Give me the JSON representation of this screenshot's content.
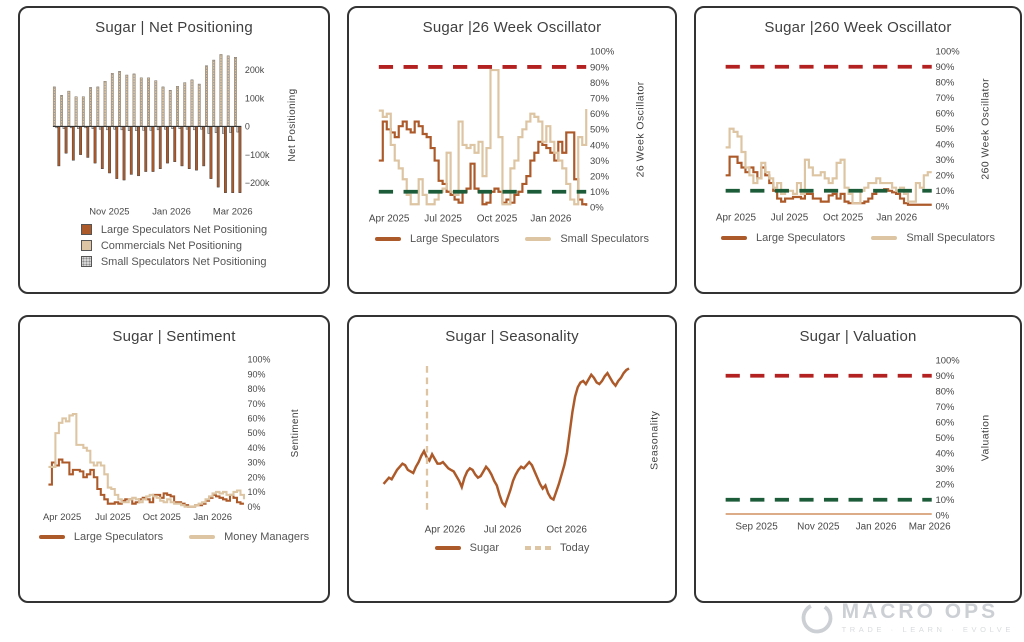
{
  "colors": {
    "brown": "#ad5a2a",
    "tan": "#ddc5a3",
    "tanbar": "#dcc4a2",
    "gray": "#cfcfcf",
    "red": "#b42121",
    "green": "#1d5c39",
    "valuation_line": "#c87941",
    "panel_border": "#333333",
    "title_text": "#3f3f3f",
    "tick_text": "#474747",
    "legend_text": "#555555"
  },
  "logo": {
    "brand": "MACRO OPS",
    "tagline": "TRADE · LEARN · EVOLVE"
  },
  "chart_data": [
    {
      "type": "bar",
      "title": "Sugar | Net Positioning",
      "ylabel": "Net Positioning",
      "units": "contracts (thousands)",
      "ylim": [
        -265,
        275
      ],
      "plot": {
        "l": 30,
        "r": 240,
        "t": 12,
        "b": 182
      },
      "ylabel_x": 300,
      "yticks": [
        [
          200,
          "200k"
        ],
        [
          100,
          "100k"
        ],
        [
          0,
          "0"
        ],
        [
          -100,
          "−100k"
        ],
        [
          -200,
          "−200k"
        ]
      ],
      "xticks": [
        [
          0.3,
          "Nov 2025"
        ],
        [
          0.63,
          "Jan 2026"
        ],
        [
          0.955,
          "Mar 2026"
        ]
      ],
      "series": [
        {
          "name": "Large Speculators Net Positioning",
          "role": "large",
          "color": "#ad5a2a",
          "values": [
            -140,
            -95,
            -120,
            -100,
            -110,
            -130,
            -150,
            -165,
            -185,
            -190,
            -170,
            -175,
            -160,
            -160,
            -150,
            -130,
            -125,
            -140,
            -150,
            -155,
            -140,
            -185,
            -215,
            -235,
            -235,
            -235
          ]
        },
        {
          "name": "Commercials Net Positioning",
          "role": "commercials",
          "color": "#dcc4a2",
          "values": [
            140,
            110,
            125,
            105,
            105,
            138,
            140,
            160,
            188,
            195,
            182,
            186,
            172,
            172,
            162,
            140,
            128,
            142,
            155,
            165,
            150,
            215,
            235,
            255,
            250,
            245
          ]
        },
        {
          "name": "Small Speculators Net Positioning",
          "role": "small",
          "color": "#cfcfcf",
          "values": [
            -5,
            -8,
            -5,
            -8,
            -5,
            -8,
            -10,
            -12,
            -10,
            -12,
            -15,
            -15,
            -14,
            -14,
            -12,
            -10,
            -8,
            -8,
            -10,
            -12,
            -10,
            -25,
            -22,
            -25,
            -22,
            -20
          ]
        }
      ],
      "legend": [
        {
          "label": "Large Speculators Net Positioning",
          "swatch": "sq-brown"
        },
        {
          "label": "Commercials Net Positioning",
          "swatch": "sq-tan"
        },
        {
          "label": "Small Speculators Net Positioning",
          "swatch": "sq-gray"
        }
      ]
    },
    {
      "type": "step",
      "title": "Sugar |26 Week Oscillator",
      "ylabel": "26 Week Oscillator",
      "ylim": [
        0,
        100
      ],
      "plot": {
        "l": 25,
        "r": 243,
        "t": 14,
        "b": 178
      },
      "ylabel_x": 303,
      "yticks": [
        [
          100,
          "100%"
        ],
        [
          90,
          "90%"
        ],
        [
          80,
          "80%"
        ],
        [
          70,
          "70%"
        ],
        [
          60,
          "60%"
        ],
        [
          50,
          "50%"
        ],
        [
          40,
          "40%"
        ],
        [
          30,
          "30%"
        ],
        [
          20,
          "20%"
        ],
        [
          10,
          "10%"
        ],
        [
          0,
          "0%"
        ]
      ],
      "xticks": [
        [
          0.05,
          "Apr 2025"
        ],
        [
          0.31,
          "Jul 2025"
        ],
        [
          0.57,
          "Oct 2025"
        ],
        [
          0.83,
          "Jan 2026"
        ]
      ],
      "guides": [
        [
          90,
          "red"
        ],
        [
          10,
          "green"
        ]
      ],
      "series": [
        {
          "name": "Large Speculators",
          "color": "#ad5a2a",
          "values": [
            30,
            55,
            50,
            48,
            45,
            52,
            55,
            50,
            48,
            55,
            52,
            47,
            45,
            38,
            30,
            17,
            15,
            10,
            8,
            5,
            3,
            10,
            12,
            28,
            12,
            10,
            2,
            3,
            10,
            12,
            10,
            3,
            5,
            3,
            8,
            10,
            15,
            20,
            30,
            35,
            42,
            40,
            38,
            35,
            30,
            42,
            35,
            48,
            48,
            18,
            5,
            2,
            1
          ]
        },
        {
          "name": "Small Speculators",
          "color": "#ddc5a3",
          "values": [
            62,
            58,
            60,
            40,
            30,
            25,
            18,
            8,
            2,
            2,
            18,
            8,
            2,
            2,
            5,
            10,
            12,
            35,
            10,
            8,
            55,
            40,
            38,
            40,
            35,
            42,
            20,
            38,
            88,
            88,
            45,
            2,
            2,
            25,
            30,
            45,
            50,
            55,
            60,
            58,
            55,
            42,
            52,
            42,
            35,
            30,
            25,
            15,
            5,
            2,
            45,
            40,
            63
          ]
        }
      ],
      "legend": [
        {
          "label": "Large Speculators",
          "swatch": "line-brown"
        },
        {
          "label": "Small Speculators",
          "swatch": "line-tan"
        }
      ]
    },
    {
      "type": "step",
      "title": "Sugar |260 Week Oscillator",
      "ylabel": "260 Week Oscillator",
      "ylim": [
        0,
        100
      ],
      "plot": {
        "l": 25,
        "r": 243,
        "t": 14,
        "b": 178
      },
      "ylabel_x": 303,
      "yticks": [
        [
          100,
          "100%"
        ],
        [
          90,
          "90%"
        ],
        [
          80,
          "80%"
        ],
        [
          70,
          "70%"
        ],
        [
          60,
          "60%"
        ],
        [
          50,
          "50%"
        ],
        [
          40,
          "40%"
        ],
        [
          30,
          "30%"
        ],
        [
          20,
          "20%"
        ],
        [
          10,
          "10%"
        ],
        [
          0,
          "0%"
        ]
      ],
      "xticks": [
        [
          0.05,
          "Apr 2025"
        ],
        [
          0.31,
          "Jul 2025"
        ],
        [
          0.57,
          "Oct 2025"
        ],
        [
          0.83,
          "Jan 2026"
        ]
      ],
      "guides": [
        [
          90,
          "red"
        ],
        [
          10,
          "green"
        ]
      ],
      "series": [
        {
          "name": "Large Speculators",
          "color": "#ad5a2a",
          "values": [
            20,
            32,
            32,
            28,
            25,
            22,
            25,
            22,
            18,
            25,
            20,
            15,
            10,
            5,
            3,
            5,
            5,
            6,
            6,
            5,
            8,
            8,
            5,
            5,
            3,
            3,
            7,
            8,
            5,
            8,
            3,
            2,
            2,
            2,
            2,
            3,
            5,
            8,
            10,
            10,
            11,
            10,
            9,
            8,
            5,
            2,
            1,
            1,
            1,
            1,
            1,
            1,
            1
          ]
        },
        {
          "name": "Small Speculators",
          "color": "#ddc5a3",
          "values": [
            38,
            50,
            48,
            45,
            35,
            25,
            20,
            15,
            18,
            28,
            22,
            18,
            12,
            15,
            8,
            10,
            10,
            8,
            15,
            8,
            30,
            25,
            20,
            20,
            22,
            18,
            15,
            18,
            28,
            30,
            12,
            8,
            2,
            2,
            10,
            12,
            15,
            15,
            18,
            15,
            15,
            15,
            12,
            10,
            12,
            8,
            3,
            3,
            15,
            12,
            20,
            22,
            22
          ]
        }
      ],
      "legend": [
        {
          "label": "Large Speculators",
          "swatch": "line-brown"
        },
        {
          "label": "Small Speculators",
          "swatch": "line-tan"
        }
      ]
    },
    {
      "type": "step",
      "title": "Sugar | Sentiment",
      "ylabel": "Sentiment",
      "ylim": [
        0,
        100
      ],
      "plot": {
        "l": 25,
        "r": 243,
        "t": 14,
        "b": 178
      },
      "ylabel_x": 303,
      "yticks": [
        [
          100,
          "100%"
        ],
        [
          90,
          "90%"
        ],
        [
          80,
          "80%"
        ],
        [
          70,
          "70%"
        ],
        [
          60,
          "60%"
        ],
        [
          50,
          "50%"
        ],
        [
          40,
          "40%"
        ],
        [
          30,
          "30%"
        ],
        [
          20,
          "20%"
        ],
        [
          10,
          "10%"
        ],
        [
          0,
          "0%"
        ]
      ],
      "xticks": [
        [
          0.07,
          "Apr 2025"
        ],
        [
          0.33,
          "Jul 2025"
        ],
        [
          0.58,
          "Oct 2025"
        ],
        [
          0.84,
          "Jan 2026"
        ]
      ],
      "series": [
        {
          "name": "Large Speculators",
          "color": "#ad5a2a",
          "values": [
            15,
            30,
            28,
            32,
            30,
            30,
            22,
            25,
            25,
            24,
            20,
            22,
            25,
            20,
            12,
            8,
            5,
            2,
            2,
            3,
            2,
            4,
            5,
            5,
            2,
            3,
            5,
            6,
            5,
            3,
            8,
            8,
            6,
            9,
            8,
            7,
            3,
            3,
            2,
            1,
            0,
            0,
            1,
            1,
            2,
            4,
            6,
            8,
            7,
            6,
            5,
            4,
            8,
            6,
            3,
            2,
            2
          ]
        },
        {
          "name": "Money Managers",
          "color": "#ddc5a3",
          "values": [
            27,
            27,
            50,
            57,
            60,
            58,
            62,
            63,
            42,
            42,
            40,
            38,
            30,
            28,
            30,
            28,
            22,
            13,
            12,
            8,
            5,
            3,
            3,
            5,
            6,
            5,
            3,
            5,
            7,
            8,
            7,
            6,
            4,
            3,
            5,
            3,
            2,
            2,
            1,
            0,
            0,
            0,
            1,
            2,
            3,
            5,
            7,
            9,
            10,
            9,
            10,
            8,
            8,
            10,
            11,
            8,
            5
          ]
        }
      ],
      "legend": [
        {
          "label": "Large Speculators",
          "swatch": "line-brown"
        },
        {
          "label": "Money Managers",
          "swatch": "line-tan"
        }
      ]
    },
    {
      "type": "line",
      "title": "Sugar | Seasonality",
      "ylabel": "Seasonality",
      "ylim": [
        0,
        100
      ],
      "plot": {
        "l": 30,
        "r": 288,
        "t": 16,
        "b": 180
      },
      "ylabel_x": 318,
      "yticks": [],
      "xticks": [
        [
          0.25,
          "Apr 2026"
        ],
        [
          0.485,
          "Jul 2026"
        ],
        [
          0.746,
          "Oct 2026"
        ]
      ],
      "today_x": 0.177,
      "series": [
        {
          "name": "Sugar",
          "color": "#ad5a2a",
          "width": 2.6,
          "values": [
            22,
            24,
            26,
            25,
            28,
            31,
            33,
            35,
            34,
            31,
            30,
            29,
            33,
            36,
            40,
            43,
            39,
            37,
            41,
            38,
            35,
            35,
            36,
            34,
            32,
            31,
            30,
            27,
            24,
            20,
            26,
            30,
            32,
            31,
            28,
            26,
            27,
            30,
            33,
            31,
            28,
            24,
            21,
            15,
            10,
            8,
            13,
            18,
            24,
            28,
            31,
            33,
            32,
            34,
            36,
            34,
            30,
            26,
            22,
            19,
            21,
            16,
            13,
            12,
            17,
            22,
            28,
            34,
            42,
            55,
            68,
            78,
            84,
            87,
            88,
            86,
            89,
            92,
            90,
            87,
            86,
            88,
            91,
            93,
            90,
            87,
            85,
            88,
            90,
            93,
            95,
            96
          ]
        }
      ],
      "legend": [
        {
          "label": "Sugar",
          "swatch": "line-brown"
        },
        {
          "label": "Today",
          "swatch": "dash-tan"
        }
      ]
    },
    {
      "type": "line",
      "title": "Sugar | Valuation",
      "ylabel": "Valuation",
      "ylim": [
        0,
        100
      ],
      "plot": {
        "l": 25,
        "r": 243,
        "t": 14,
        "b": 178
      },
      "ylabel_x": 303,
      "yticks": [
        [
          100,
          "100%"
        ],
        [
          90,
          "90%"
        ],
        [
          80,
          "80%"
        ],
        [
          70,
          "70%"
        ],
        [
          60,
          "60%"
        ],
        [
          50,
          "50%"
        ],
        [
          40,
          "40%"
        ],
        [
          30,
          "30%"
        ],
        [
          20,
          "20%"
        ],
        [
          10,
          "10%"
        ],
        [
          0,
          "0%"
        ]
      ],
      "xticks": [
        [
          0.15,
          "Sep 2025"
        ],
        [
          0.45,
          "Nov 2025"
        ],
        [
          0.73,
          "Jan 2026"
        ],
        [
          0.99,
          "Mar 2026"
        ]
      ],
      "guides": [
        [
          90,
          "red"
        ],
        [
          10,
          "green"
        ]
      ],
      "series": [
        {
          "name": "Valuation",
          "color": "#c87941",
          "width": 1.3,
          "values": [
            0.8,
            0.8
          ]
        }
      ],
      "legend": []
    }
  ]
}
